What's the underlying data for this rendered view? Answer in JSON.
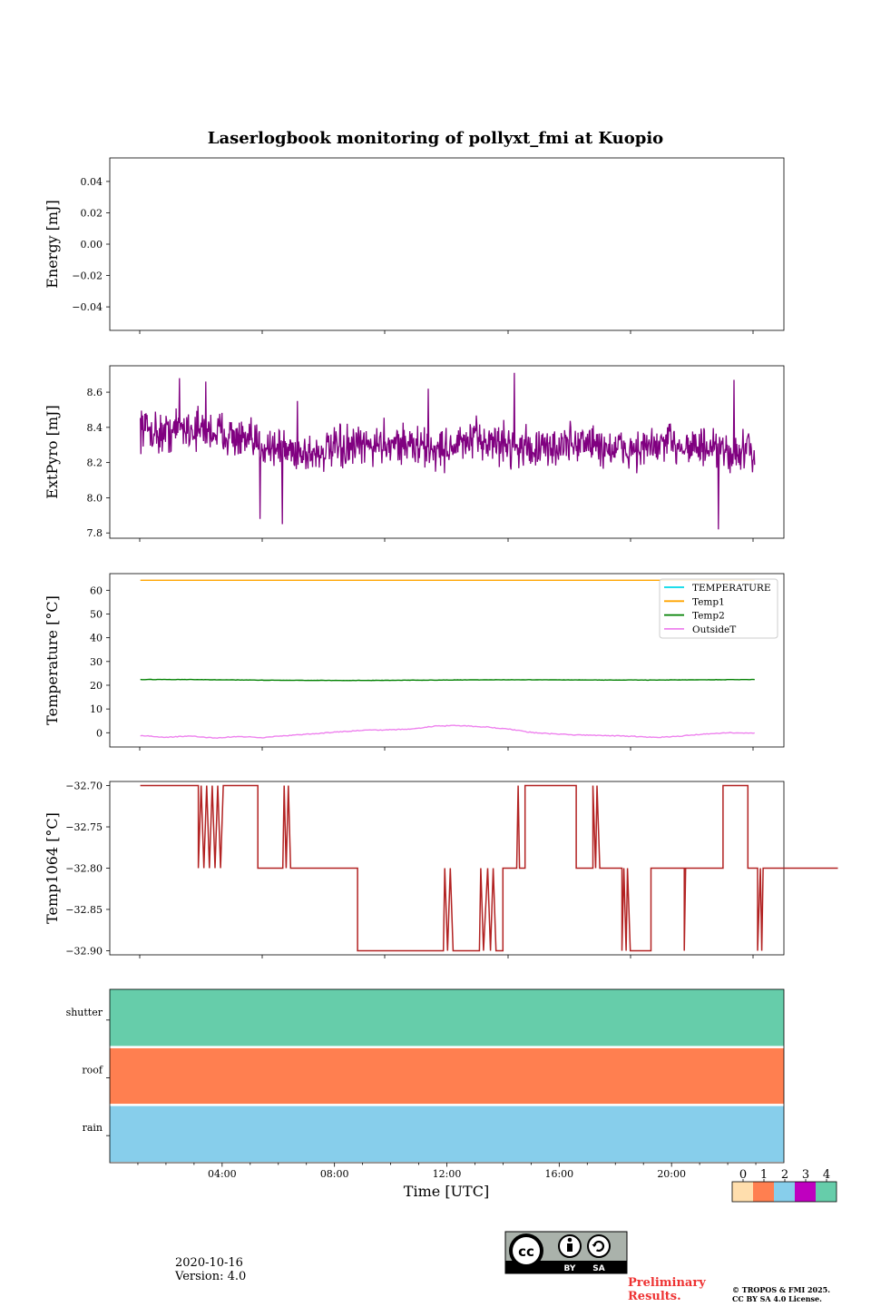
{
  "figure": {
    "title": "Laserlogbook monitoring of pollyxt_fmi at Kuopio",
    "xlabel": "Time [UTC]",
    "date": "2020-10-16",
    "version": "Version: 4.0",
    "preliminary": [
      "Preliminary",
      "Results."
    ],
    "copyright": [
      "© TROPOS & FMI 2025.",
      "CC BY SA 4.0 License."
    ],
    "license_badge": [
      "BY",
      "SA"
    ]
  },
  "chart_data": [
    {
      "id": "energy",
      "type": "line",
      "title": "",
      "ylabel": "Energy [mJ]",
      "ylim": [
        -0.055,
        0.055
      ],
      "yticks": [
        -0.04,
        -0.02,
        0.0,
        0.02,
        0.04
      ],
      "ytick_labels": [
        "−0.04",
        "−0.02",
        "0.00",
        "0.02",
        "0.04"
      ],
      "series": []
    },
    {
      "id": "extpyro",
      "type": "line",
      "ylabel": "ExtPyro [mJ]",
      "ylim": [
        7.77,
        8.75
      ],
      "yticks": [
        7.8,
        8.0,
        8.2,
        8.4,
        8.6
      ],
      "ytick_labels": [
        "7.8",
        "8.0",
        "8.2",
        "8.4",
        "8.6"
      ],
      "xlim_hours": [
        -2.85,
        21.4
      ],
      "series": [
        {
          "name": "ExtPyro",
          "color": "#800080",
          "x_range_hours": [
            -1.75,
            20.35
          ],
          "noise_amplitude": 0.1,
          "values": [
            8.41,
            8.36,
            8.4,
            8.38,
            8.37,
            8.31,
            8.3,
            8.27,
            8.25,
            8.27,
            8.28,
            8.3,
            8.32,
            8.29,
            8.27,
            8.3,
            8.33,
            8.31,
            8.29,
            8.27,
            8.3,
            8.32,
            8.28,
            8.27,
            8.28,
            8.31,
            8.3,
            8.26,
            8.25,
            8.27
          ],
          "peaks": [
            [
              -0.35,
              8.68
            ],
            [
              0.6,
              8.66
            ],
            [
              3.9,
              8.55
            ],
            [
              8.6,
              8.62
            ],
            [
              11.7,
              8.71
            ],
            [
              19.6,
              8.67
            ]
          ],
          "dips": [
            [
              2.55,
              7.88
            ],
            [
              3.35,
              7.85
            ],
            [
              19.05,
              7.82
            ]
          ]
        }
      ]
    },
    {
      "id": "temperature",
      "type": "line",
      "ylabel": "Temperature [°C]",
      "ylim": [
        -6,
        67
      ],
      "yticks": [
        0,
        10,
        20,
        30,
        40,
        50,
        60
      ],
      "ytick_labels": [
        "0",
        "10",
        "20",
        "30",
        "40",
        "50",
        "60"
      ],
      "xlim_hours": [
        -2.85,
        21.4
      ],
      "legend_position": "top-right",
      "series": [
        {
          "name": "TEMPERATURE",
          "color": "#00d8e8",
          "values": []
        },
        {
          "name": "Temp1",
          "color": "#ffa500",
          "x_range_hours": [
            -1.75,
            20.35
          ],
          "values": [
            64.2,
            64.2
          ]
        },
        {
          "name": "Temp2",
          "color": "#008000",
          "x_range_hours": [
            -1.75,
            20.35
          ],
          "values": [
            22.4,
            22.4,
            22.2,
            22.1,
            22.0,
            22.1,
            22.2,
            22.3,
            22.3,
            22.2,
            22.2,
            22.3,
            22.4
          ]
        },
        {
          "name": "OutsideT",
          "color": "#ee82ee",
          "x_range_hours": [
            -1.75,
            20.35
          ],
          "values": [
            -1.2,
            -1.9,
            -1.4,
            -2.2,
            -1.6,
            -2.0,
            -1.2,
            -0.5,
            0.3,
            1.0,
            1.2,
            1.5,
            2.8,
            3.0,
            2.5,
            1.5,
            0.0,
            -0.6,
            -1.0,
            -1.2,
            -1.5,
            -2.0,
            -1.4,
            -0.5,
            0.0,
            -0.2
          ]
        }
      ]
    },
    {
      "id": "temp1064",
      "type": "line",
      "ylabel": "Temp1064 [°C]",
      "ylim": [
        -32.905,
        -32.695
      ],
      "yticks": [
        -32.9,
        -32.85,
        -32.8,
        -32.75,
        -32.7
      ],
      "ytick_labels": [
        "−32.90",
        "−32.85",
        "−32.80",
        "−32.75",
        "−32.70"
      ],
      "xlim_hours": [
        -2.75,
        21.6
      ],
      "series": [
        {
          "name": "Temp1064",
          "color": "#b22222",
          "step_points": [
            [
              -1.65,
              -32.7
            ],
            [
              0.45,
              -32.7
            ],
            [
              0.45,
              -32.8
            ],
            [
              0.55,
              -32.7
            ],
            [
              0.65,
              -32.8
            ],
            [
              0.75,
              -32.7
            ],
            [
              0.85,
              -32.8
            ],
            [
              0.95,
              -32.7
            ],
            [
              1.05,
              -32.8
            ],
            [
              1.15,
              -32.7
            ],
            [
              1.25,
              -32.8
            ],
            [
              1.35,
              -32.7
            ],
            [
              2.6,
              -32.7
            ],
            [
              2.6,
              -32.8
            ],
            [
              3.5,
              -32.8
            ],
            [
              3.55,
              -32.7
            ],
            [
              3.62,
              -32.8
            ],
            [
              3.7,
              -32.7
            ],
            [
              3.78,
              -32.8
            ],
            [
              6.2,
              -32.8
            ],
            [
              6.2,
              -32.9
            ],
            [
              9.3,
              -32.9
            ],
            [
              9.35,
              -32.8
            ],
            [
              9.45,
              -32.9
            ],
            [
              9.55,
              -32.8
            ],
            [
              9.65,
              -32.9
            ],
            [
              10.6,
              -32.9
            ],
            [
              10.65,
              -32.8
            ],
            [
              10.75,
              -32.9
            ],
            [
              10.9,
              -32.8
            ],
            [
              11.0,
              -32.9
            ],
            [
              11.1,
              -32.8
            ],
            [
              11.2,
              -32.9
            ],
            [
              11.45,
              -32.9
            ],
            [
              11.45,
              -32.8
            ],
            [
              11.95,
              -32.8
            ],
            [
              12.0,
              -32.7
            ],
            [
              12.05,
              -32.8
            ],
            [
              12.25,
              -32.8
            ],
            [
              12.25,
              -32.7
            ],
            [
              14.1,
              -32.7
            ],
            [
              14.1,
              -32.8
            ],
            [
              14.7,
              -32.8
            ],
            [
              14.7,
              -32.7
            ],
            [
              14.8,
              -32.8
            ],
            [
              14.85,
              -32.7
            ],
            [
              14.95,
              -32.8
            ],
            [
              15.75,
              -32.8
            ],
            [
              15.75,
              -32.9
            ],
            [
              15.82,
              -32.8
            ],
            [
              15.9,
              -32.9
            ],
            [
              15.95,
              -32.8
            ],
            [
              16.05,
              -32.9
            ],
            [
              16.8,
              -32.9
            ],
            [
              16.8,
              -32.8
            ],
            [
              18.0,
              -32.8
            ],
            [
              18.0,
              -32.9
            ],
            [
              18.05,
              -32.8
            ],
            [
              19.4,
              -32.8
            ],
            [
              19.4,
              -32.7
            ],
            [
              20.3,
              -32.7
            ],
            [
              20.3,
              -32.8
            ],
            [
              20.65,
              -32.8
            ],
            [
              20.65,
              -32.9
            ],
            [
              20.75,
              -32.8
            ],
            [
              20.8,
              -32.9
            ],
            [
              20.85,
              -32.8
            ],
            [
              23.55,
              -32.8
            ]
          ]
        }
      ]
    },
    {
      "id": "status",
      "type": "heatmap",
      "rows": [
        "shutter",
        "roof",
        "rain"
      ],
      "row_status": [
        4,
        1,
        2
      ],
      "xticks": [
        "04:00",
        "08:00",
        "12:00",
        "16:00",
        "20:00"
      ],
      "xtick_hours": [
        4,
        8,
        12,
        16,
        20
      ],
      "xlim_hours": [
        0,
        24
      ],
      "colorbar": {
        "labels": [
          "0",
          "1",
          "2",
          "3",
          "4"
        ],
        "colors": [
          "#ffdead",
          "#ff7f50",
          "#87ceeb",
          "#bf00bf",
          "#66cdaa"
        ]
      }
    }
  ]
}
